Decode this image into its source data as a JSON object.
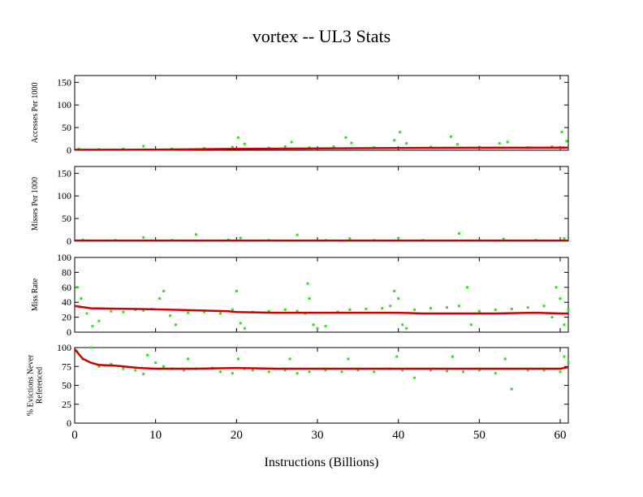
{
  "chart_data": {
    "title": "vortex -- UL3  Stats",
    "xlabel": "Instructions (Billions)",
    "xlim": [
      0,
      61
    ],
    "xticks": [
      "0",
      "10",
      "20",
      "30",
      "40",
      "50",
      "60"
    ],
    "xtick_values": [
      0,
      10,
      20,
      30,
      40,
      50,
      60
    ],
    "colors": {
      "raw": "#33dd22",
      "average": "#cc0000"
    },
    "panels": [
      {
        "type": "scatter",
        "ylabel": [
          "Accesses Per 1000"
        ],
        "ylim": [
          0,
          165
        ],
        "yticks": [
          "0",
          "50",
          "100",
          "150"
        ],
        "ytick_values": [
          0,
          50,
          100,
          150
        ],
        "series": [
          {
            "role": "raw",
            "x": [
              0.5,
              3,
              6,
              8.5,
              12,
              16,
              19.5,
              20.2,
              21,
              24,
              26,
              26.8,
              29,
              32,
              33.5,
              34.2,
              37,
              39.5,
              40.2,
              41,
              44,
              46.5,
              47.3,
              50,
              52.5,
              53.5,
              56,
              59,
              60.2,
              60.8
            ],
            "y": [
              3,
              2,
              3,
              9,
              3,
              4,
              7,
              28,
              14,
              5,
              8,
              18,
              6,
              8,
              28,
              16,
              6,
              22,
              40,
              15,
              7,
              30,
              13,
              7,
              15,
              18,
              6,
              8,
              40,
              20
            ]
          },
          {
            "role": "average",
            "x": [
              0,
              10,
              20,
              30,
              40,
              50,
              61
            ],
            "y": [
              1,
              1.5,
              3,
              4,
              5,
              5.5,
              6
            ]
          }
        ]
      },
      {
        "type": "scatter",
        "ylabel": [
          "Misses Per 1000"
        ],
        "ylim": [
          0,
          165
        ],
        "yticks": [
          "0",
          "50",
          "100",
          "150"
        ],
        "ytick_values": [
          0,
          50,
          100,
          150
        ],
        "series": [
          {
            "role": "raw",
            "x": [
              1,
              5,
              8.5,
              12,
              15,
              19,
              20.5,
              24,
              27.5,
              31,
              34,
              37,
              40,
              43,
              47.5,
              50,
              53,
              57,
              60.5
            ],
            "y": [
              3,
              2,
              8,
              2,
              15,
              3,
              7,
              2,
              14,
              2,
              6,
              2,
              7,
              2,
              17,
              2,
              5,
              2,
              6
            ]
          },
          {
            "role": "average",
            "x": [
              0,
              61
            ],
            "y": [
              1.5,
              1.5
            ]
          }
        ]
      },
      {
        "type": "scatter",
        "ylabel": [
          "Miss Rate"
        ],
        "ylim": [
          0,
          100
        ],
        "yticks": [
          "0",
          "20",
          "40",
          "60",
          "80",
          "100"
        ],
        "ytick_values": [
          0,
          20,
          40,
          60,
          80,
          100
        ],
        "series": [
          {
            "role": "raw",
            "x": [
              0.3,
              0.8,
              1.5,
              2.2,
              3,
              4.5,
              6,
              7.5,
              8.5,
              9.5,
              10.5,
              11,
              11.8,
              12.5,
              14,
              16,
              18,
              19.5,
              20,
              20.5,
              21,
              22,
              24,
              26,
              27.5,
              28.5,
              28.8,
              29,
              29.5,
              30,
              31,
              32.5,
              34,
              36,
              38,
              39,
              39.5,
              40,
              40.5,
              41,
              42,
              44,
              46,
              47.5,
              48.5,
              49,
              50,
              52,
              54,
              56,
              58,
              59,
              59.5,
              60,
              60.5,
              61
            ],
            "y": [
              60,
              45,
              25,
              8,
              15,
              28,
              27,
              30,
              29,
              31,
              45,
              55,
              22,
              10,
              26,
              27,
              25,
              30,
              55,
              12,
              5,
              27,
              28,
              30,
              28,
              25,
              65,
              45,
              10,
              5,
              8,
              27,
              30,
              31,
              32,
              35,
              55,
              45,
              10,
              5,
              30,
              32,
              33,
              35,
              60,
              10,
              28,
              30,
              31,
              33,
              35,
              20,
              60,
              45,
              10,
              30
            ]
          },
          {
            "role": "average",
            "x": [
              0,
              2,
              8,
              12,
              19,
              20,
              25,
              30,
              35,
              40,
              43,
              48,
              52,
              57,
              60,
              61
            ],
            "y": [
              35,
              32,
              31,
              30,
              28,
              27,
              26,
              26,
              26,
              26,
              25,
              25,
              25,
              26,
              25,
              25
            ]
          }
        ]
      },
      {
        "type": "scatter",
        "ylabel": [
          "% Evictions Never",
          "Referenced"
        ],
        "ylim": [
          0,
          100
        ],
        "yticks": [
          "0",
          "25",
          "50",
          "75",
          "100"
        ],
        "ytick_values": [
          0,
          25,
          50,
          75,
          100
        ],
        "series": [
          {
            "role": "raw",
            "x": [
              0.3,
              1,
              2,
              3,
              4.5,
              6,
              7.5,
              8.5,
              9,
              10,
              11,
              12,
              13.5,
              14,
              15,
              17,
              18,
              19.5,
              20.2,
              21,
              22,
              24,
              26,
              26.6,
              27.5,
              29,
              31,
              33,
              33.8,
              35,
              37,
              39,
              39.8,
              40.5,
              42,
              44,
              46,
              46.7,
              48,
              50,
              52,
              53.2,
              54,
              56,
              58,
              60,
              60.5,
              61
            ],
            "y": [
              95,
              85,
              100,
              75,
              78,
              72,
              70,
              65,
              90,
              80,
              75,
              72,
              70,
              85,
              72,
              73,
              68,
              66,
              85,
              72,
              70,
              68,
              70,
              85,
              66,
              68,
              70,
              68,
              85,
              70,
              68,
              72,
              88,
              70,
              60,
              70,
              69,
              88,
              68,
              70,
              66,
              85,
              45,
              70,
              70,
              68,
              88,
              80
            ]
          },
          {
            "role": "average",
            "x": [
              0,
              1,
              2,
              3,
              5,
              8,
              10,
              15,
              20,
              25,
              30,
              35,
              40,
              45,
              50,
              55,
              60,
              61
            ],
            "y": [
              98,
              85,
              80,
              77,
              76,
              73,
              72,
              72,
              73,
              72,
              72,
              72,
              72,
              72,
              72,
              72,
              72,
              74
            ]
          }
        ]
      }
    ]
  }
}
